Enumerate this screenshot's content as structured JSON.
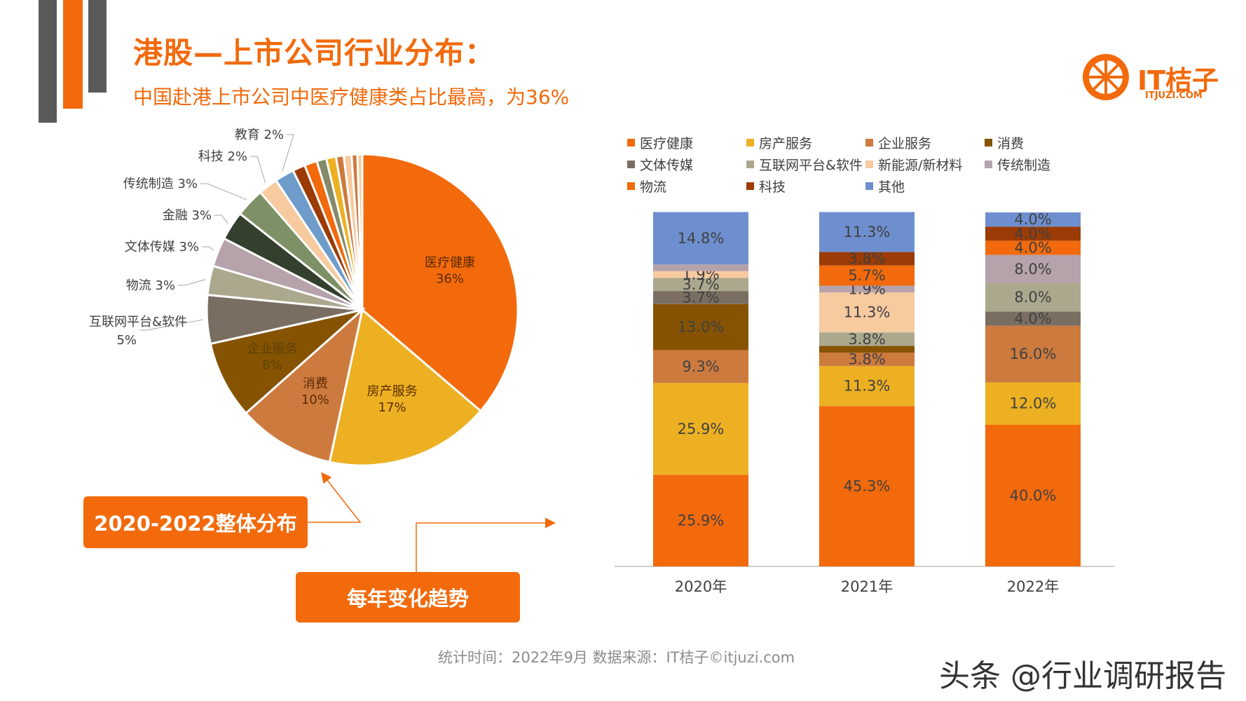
{
  "header": {
    "title": "港股—上市公司行业分布：",
    "subtitle": "中国赴港上市公司中医疗健康类占比最高，为36%"
  },
  "logo": {
    "name": "IT桔子",
    "url_text": "ITJUZI.COM"
  },
  "callouts": {
    "overall": "2020-2022整体分布",
    "yearly": "每年变化趋势"
  },
  "footer": {
    "source": "统计时间：2022年9月   数据来源：IT桔子©itjuzi.com",
    "watermark": "头条 @行业调研报告"
  },
  "colors": {
    "accent": "#f26a0c",
    "dark_bar": "#595959"
  },
  "chart_data": [
    {
      "type": "pie",
      "slices": [
        {
          "label": "医疗健康",
          "value": 36,
          "display": "36%",
          "color": "#f26a0c"
        },
        {
          "label": "房产服务",
          "value": 17,
          "display": "17%",
          "color": "#ecb022"
        },
        {
          "label": "消费",
          "value": 10,
          "display": "10%",
          "color": "#cd7a3f"
        },
        {
          "label": "企业服务",
          "value": 8,
          "display": "8%",
          "color": "#865302"
        },
        {
          "label": "互联网平台&软件",
          "value": 5,
          "display": "5%",
          "color": "#7a6e62"
        },
        {
          "label": "物流",
          "value": 3,
          "display": "3%",
          "color": "#aba88e"
        },
        {
          "label": "文体传媒",
          "value": 3,
          "display": "3%",
          "color": "#b5a2ab"
        },
        {
          "label": "金融",
          "value": 3,
          "display": "3%",
          "color": "#353f2e"
        },
        {
          "label": "传统制造",
          "value": 3,
          "display": "3%",
          "color": "#7e9065"
        },
        {
          "label": "科技",
          "value": 2,
          "display": "2%",
          "color": "#f7caa0"
        },
        {
          "label": "教育",
          "value": 2,
          "display": "2%",
          "color": "#6e9bca"
        },
        {
          "label": "",
          "value": 1.3,
          "display": "",
          "color": "#9c3b06"
        },
        {
          "label": "",
          "value": 1.3,
          "display": "",
          "color": "#f26a0c"
        },
        {
          "label": "",
          "value": 1.0,
          "display": "",
          "color": "#848a6a"
        },
        {
          "label": "",
          "value": 1.0,
          "display": "",
          "color": "#ecb022"
        },
        {
          "label": "",
          "value": 0.8,
          "display": "",
          "color": "#cd7a3f"
        },
        {
          "label": "",
          "value": 0.8,
          "display": "",
          "color": "#f7caa0"
        },
        {
          "label": "",
          "value": 0.6,
          "display": "",
          "color": "#cd7a3f"
        },
        {
          "label": "",
          "value": 0.5,
          "display": "",
          "color": "#f7caa0"
        }
      ]
    },
    {
      "type": "bar",
      "stacked": true,
      "categories": [
        "2020年",
        "2021年",
        "2022年"
      ],
      "series": [
        {
          "name": "医疗健康",
          "color": "#f26a0c",
          "values": [
            25.9,
            45.3,
            40.0
          ]
        },
        {
          "name": "房产服务",
          "color": "#ecb022",
          "values": [
            25.9,
            11.3,
            12.0
          ]
        },
        {
          "name": "企业服务",
          "color": "#cd7a3f",
          "values": [
            9.3,
            3.8,
            16.0
          ]
        },
        {
          "name": "消费",
          "color": "#865302",
          "values": [
            13.0,
            1.9,
            0
          ]
        },
        {
          "name": "文体传媒",
          "color": "#7a6e62",
          "values": [
            3.7,
            0,
            4.0
          ]
        },
        {
          "name": "互联网平台&软件",
          "color": "#aba88e",
          "values": [
            3.7,
            3.8,
            8.0
          ]
        },
        {
          "name": "新能源/新材料",
          "color": "#f7caa0",
          "values": [
            1.9,
            11.3,
            0
          ]
        },
        {
          "name": "传统制造",
          "color": "#b5a2ab",
          "values": [
            1.9,
            1.9,
            8.0
          ]
        },
        {
          "name": "物流",
          "color": "#f26a0c",
          "values": [
            0,
            5.7,
            4.0
          ]
        },
        {
          "name": "科技",
          "color": "#9c3b06",
          "values": [
            0,
            3.8,
            4.0
          ]
        },
        {
          "name": "其他",
          "color": "#6e8fcf",
          "values": [
            14.8,
            11.3,
            4.0
          ]
        }
      ],
      "value_labels": [
        [
          "25.9%",
          "25.9%",
          "9.3%",
          "13.0%",
          "3.7%",
          "3.7%",
          "1.9%",
          "",
          "",
          "",
          "14.8%"
        ],
        [
          "45.3%",
          "11.3%",
          "3.8%",
          "",
          "",
          "3.8%",
          "11.3%",
          "1.9%",
          "5.7%",
          "3.8%",
          "11.3%"
        ],
        [
          "40.0%",
          "12.0%",
          "16.0%",
          "",
          "4.0%",
          "8.0%",
          "",
          "8.0%",
          "4.0%",
          "4.0%",
          "4.0%"
        ]
      ],
      "ylim": [
        0,
        100
      ],
      "grid": false,
      "legend_position": "top"
    }
  ]
}
